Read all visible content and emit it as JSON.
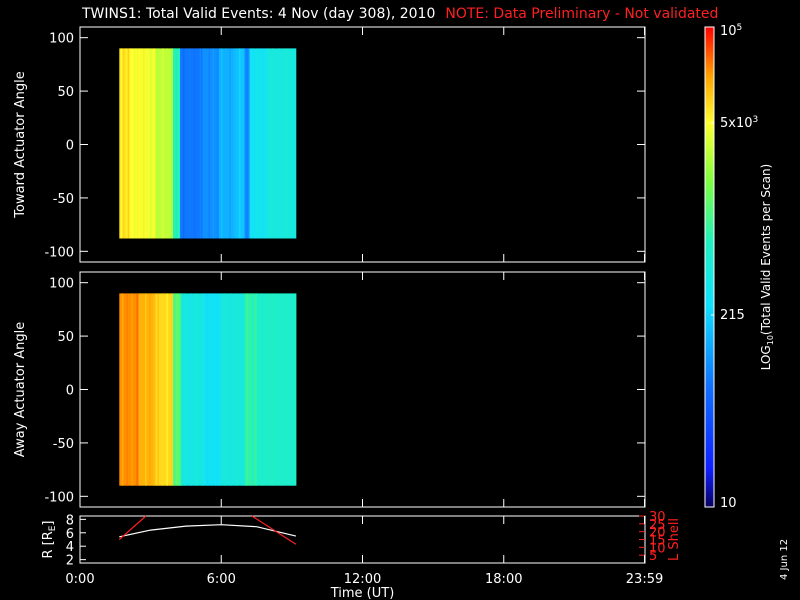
{
  "header": {
    "title": "TWINS1: Total Valid Events:  4 Nov (day 308), 2010",
    "note": "NOTE: Data Preliminary - Not validated"
  },
  "date_stamp": "4 Jun 12",
  "chart_data": [
    {
      "type": "heatmap",
      "panel": "toward",
      "ylabel": "Toward Actuator Angle",
      "xlim": [
        0,
        24
      ],
      "ylim": [
        -110,
        110
      ],
      "yticks": [
        100,
        50,
        0,
        -50,
        -100
      ],
      "data_time_range": [
        1.67,
        9.17
      ],
      "data_angle_range": [
        -88,
        90
      ],
      "columns": [
        {
          "t": [
            1.67,
            2.1
          ],
          "level": 0.83
        },
        {
          "t": [
            2.1,
            2.6
          ],
          "level": 0.8
        },
        {
          "t": [
            2.6,
            3.2
          ],
          "level": 0.79
        },
        {
          "t": [
            3.2,
            3.95
          ],
          "level": 0.74
        },
        {
          "t": [
            3.95,
            4.25
          ],
          "level": 0.55
        },
        {
          "t": [
            4.25,
            5.2
          ],
          "level": 0.26
        },
        {
          "t": [
            5.2,
            5.9
          ],
          "level": 0.3
        },
        {
          "t": [
            5.9,
            6.6
          ],
          "level": 0.35
        },
        {
          "t": [
            6.6,
            7.0
          ],
          "level": 0.38
        },
        {
          "t": [
            7.0,
            7.2
          ],
          "level": 0.28
        },
        {
          "t": [
            7.2,
            8.0
          ],
          "level": 0.45
        },
        {
          "t": [
            8.0,
            9.17
          ],
          "level": 0.49
        }
      ]
    },
    {
      "type": "heatmap",
      "panel": "away",
      "ylabel": "Away Actuator Angle",
      "xlim": [
        0,
        24
      ],
      "ylim": [
        -110,
        110
      ],
      "yticks": [
        100,
        50,
        0,
        -50,
        -100
      ],
      "data_time_range": [
        1.67,
        9.17
      ],
      "data_angle_range": [
        -90,
        90
      ],
      "columns": [
        {
          "t": [
            1.67,
            2.5
          ],
          "level": 0.91
        },
        {
          "t": [
            2.5,
            3.2
          ],
          "level": 0.88
        },
        {
          "t": [
            3.2,
            3.95
          ],
          "level": 0.84
        },
        {
          "t": [
            3.95,
            4.3
          ],
          "level": 0.62
        },
        {
          "t": [
            4.3,
            5.3
          ],
          "level": 0.48
        },
        {
          "t": [
            5.3,
            6.0
          ],
          "level": 0.44
        },
        {
          "t": [
            6.0,
            7.0
          ],
          "level": 0.49
        },
        {
          "t": [
            7.0,
            7.5
          ],
          "level": 0.57
        },
        {
          "t": [
            7.5,
            9.17
          ],
          "level": 0.53
        }
      ]
    },
    {
      "type": "line",
      "panel": "orbit",
      "ylabel": "R [R_E]",
      "ylabel_right": "L Shell",
      "xlabel": "Time (UT)",
      "xlim": [
        0,
        24
      ],
      "ylim_left": [
        1.5,
        8.5
      ],
      "ylim_right": [
        0,
        30
      ],
      "yticks_left": [
        8,
        6,
        4,
        2
      ],
      "yticks_right": [
        30,
        25,
        20,
        15,
        10,
        5
      ],
      "xtick_labels": [
        "0:00",
        "6:00",
        "12:00",
        "18:00",
        "23:59"
      ],
      "xtick_values": [
        0,
        6,
        12,
        18,
        23.98
      ],
      "series": [
        {
          "axis": "left",
          "color": "#ffffff",
          "x": [
            1.67,
            3,
            4.5,
            6,
            7.5,
            9.17
          ],
          "y": [
            5.4,
            6.4,
            7.0,
            7.2,
            6.9,
            5.5
          ]
        },
        {
          "axis": "right",
          "color": "#ff2020",
          "x": [
            1.67,
            2.8
          ],
          "y": [
            15,
            30
          ]
        },
        {
          "axis": "right",
          "color": "#ff2020",
          "x": [
            7.3,
            9.17
          ],
          "y": [
            30,
            12
          ]
        }
      ]
    }
  ],
  "colorbar": {
    "label": "LOG10(Total Valid Events per Scan)",
    "ticks": [
      {
        "text": "10",
        "level": 0.0
      },
      {
        "text": "215",
        "level": 0.4
      },
      {
        "text": "5x10^3",
        "level": 0.8
      },
      {
        "text": "10^5",
        "level": 1.0
      }
    ]
  }
}
